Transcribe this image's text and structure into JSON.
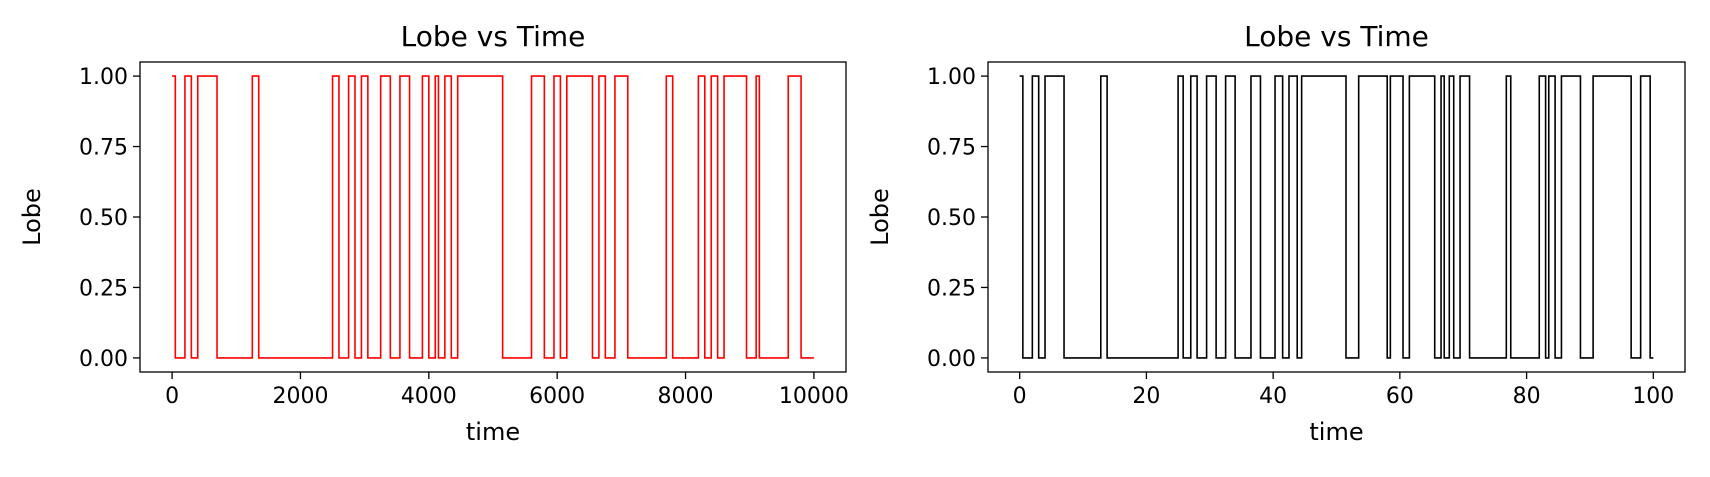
{
  "chart_data": [
    {
      "type": "line",
      "title": "Lobe vs Time",
      "xlabel": "time",
      "ylabel": "Lobe",
      "xlim": [
        -500,
        10500
      ],
      "ylim": [
        -0.05,
        1.05
      ],
      "xticks": [
        0,
        2000,
        4000,
        6000,
        8000,
        10000
      ],
      "xtick_labels": [
        "0",
        "2000",
        "4000",
        "6000",
        "8000",
        "10000"
      ],
      "yticks": [
        0.0,
        0.25,
        0.5,
        0.75,
        1.0
      ],
      "ytick_labels": [
        "0.00",
        "0.25",
        "0.50",
        "0.75",
        "1.00"
      ],
      "grid": false,
      "color": "#ff0000",
      "series": [
        {
          "step": "post",
          "x": [
            0,
            50,
            200,
            300,
            400,
            700,
            1250,
            1350,
            2500,
            2600,
            2750,
            2850,
            2950,
            3050,
            3250,
            3400,
            3550,
            3700,
            3900,
            4000,
            4100,
            4150,
            4250,
            4350,
            4450,
            5150,
            5600,
            5800,
            5950,
            6050,
            6150,
            6550,
            6650,
            6750,
            6900,
            7100,
            7700,
            7800,
            8200,
            8300,
            8400,
            8500,
            8600,
            8950,
            9100,
            9150,
            9600,
            9800,
            10000
          ],
          "y": [
            1,
            0,
            1,
            0,
            1,
            0,
            1,
            0,
            1,
            0,
            1,
            0,
            1,
            0,
            1,
            0,
            1,
            0,
            1,
            0,
            1,
            0,
            1,
            0,
            1,
            0,
            1,
            0,
            1,
            0,
            1,
            0,
            1,
            0,
            1,
            0,
            1,
            0,
            1,
            0,
            1,
            0,
            1,
            0,
            1,
            0,
            1,
            0,
            0
          ]
        }
      ]
    },
    {
      "type": "line",
      "title": "Lobe vs Time",
      "xlabel": "time",
      "ylabel": "Lobe",
      "xlim": [
        -5,
        105
      ],
      "ylim": [
        -0.05,
        1.05
      ],
      "xticks": [
        0,
        20,
        40,
        60,
        80,
        100
      ],
      "xtick_labels": [
        "0",
        "20",
        "40",
        "60",
        "80",
        "100"
      ],
      "yticks": [
        0.0,
        0.25,
        0.5,
        0.75,
        1.0
      ],
      "ytick_labels": [
        "0.00",
        "0.25",
        "0.50",
        "0.75",
        "1.00"
      ],
      "grid": false,
      "color": "#000000",
      "series": [
        {
          "step": "post",
          "x": [
            0,
            0.5,
            2,
            3,
            4,
            7,
            12.8,
            13.8,
            25,
            25.8,
            27,
            28,
            29.5,
            31,
            32.5,
            34,
            36.5,
            38,
            40.3,
            41.5,
            42.5,
            43.8,
            44.5,
            51.5,
            53.5,
            58,
            58.5,
            60.5,
            61.5,
            65.5,
            66.5,
            67,
            67.8,
            68.5,
            69.5,
            71,
            76.8,
            77.5,
            82,
            83,
            83.5,
            84.5,
            85.5,
            88.5,
            90.5,
            96.5,
            98,
            99.5,
            100
          ],
          "y": [
            1,
            0,
            1,
            0,
            1,
            0,
            1,
            0,
            1,
            0,
            1,
            0,
            1,
            0,
            1,
            0,
            1,
            0,
            1,
            0,
            1,
            0,
            1,
            0,
            1,
            0,
            1,
            0,
            1,
            0,
            1,
            0,
            1,
            0,
            1,
            0,
            1,
            0,
            1,
            0,
            1,
            0,
            1,
            0,
            1,
            0,
            1,
            0,
            0
          ]
        }
      ]
    }
  ]
}
